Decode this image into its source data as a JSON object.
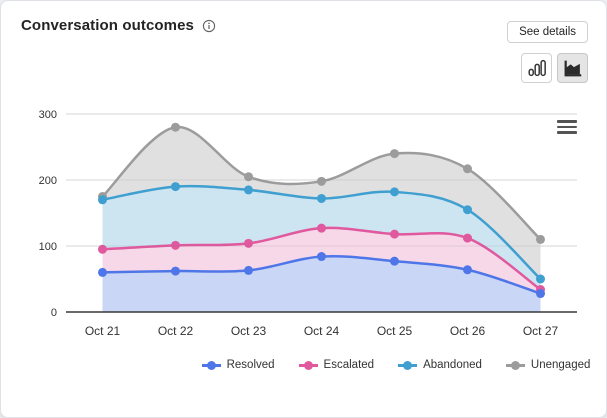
{
  "header": {
    "title": "Conversation outcomes",
    "see_details_label": "See details"
  },
  "icons": {
    "info": "info-icon",
    "column_chart": "column-chart-icon",
    "area_chart": "area-chart-icon",
    "context_menu": "hamburger-menu-icon"
  },
  "toolbar": {
    "selected_chart_type": "area"
  },
  "colors": {
    "axis_line": "#37393b",
    "grid_line": "#e6e6e6",
    "tick_label": "#333333",
    "selected_toggle_bg": "#e5e5e5",
    "card_border": "#dfe3e8"
  },
  "chart_data": {
    "type": "area",
    "title": "Conversation outcomes",
    "curve": "spline",
    "categories": [
      "Oct 21",
      "Oct 22",
      "Oct 23",
      "Oct 24",
      "Oct 25",
      "Oct 26",
      "Oct 27"
    ],
    "series": [
      {
        "name": "Resolved",
        "color": "#4f76e8",
        "fill": "#c9d6f5",
        "values": [
          60,
          62,
          63,
          84,
          77,
          64,
          28
        ]
      },
      {
        "name": "Escalated",
        "color": "#e0589e",
        "fill": "#f6d8e9",
        "values": [
          95,
          101,
          104,
          127,
          118,
          112,
          34
        ]
      },
      {
        "name": "Abandoned",
        "color": "#3f9fd0",
        "fill": "#cde4f1",
        "values": [
          170,
          190,
          185,
          172,
          182,
          155,
          50
        ]
      },
      {
        "name": "Unengaged",
        "color": "#9c9c9c",
        "fill": "#e0e0e0",
        "values": [
          175,
          280,
          205,
          198,
          240,
          217,
          110
        ]
      }
    ],
    "draw_order": [
      "Unengaged",
      "Abandoned",
      "Escalated",
      "Resolved"
    ],
    "xlabel": "",
    "ylabel": "",
    "ylim": [
      0,
      300
    ],
    "yticks": [
      0,
      100,
      200,
      300
    ],
    "grid": true,
    "legend_position": "bottom",
    "legend_order": [
      "Resolved",
      "Escalated",
      "Abandoned",
      "Unengaged"
    ]
  }
}
